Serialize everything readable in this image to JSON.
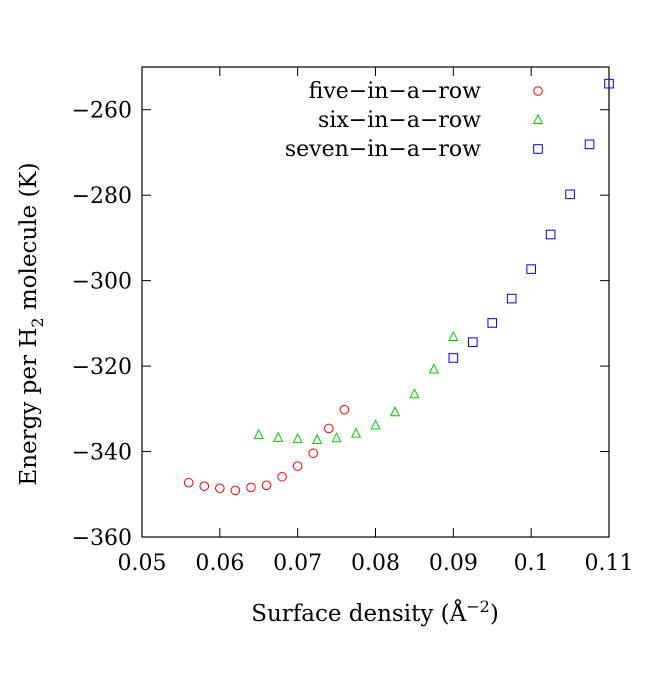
{
  "chart_data": {
    "type": "scatter",
    "xlabel": "Surface density (Å⁻²)",
    "xlabel_parts": {
      "main": "Surface density (Å",
      "sup": "−2",
      "tail": ")"
    },
    "ylabel": "Energy per H₂ molecule  (K)",
    "ylabel_parts": {
      "main": "Energy per H",
      "sub": "2",
      "tail": " molecule  (K)"
    },
    "xlim": [
      0.05,
      0.11
    ],
    "ylim": [
      -360,
      -250
    ],
    "xticks": [
      0.05,
      0.06,
      0.07,
      0.08,
      0.09,
      0.1,
      0.11
    ],
    "xtick_labels": [
      "0.05",
      "0.06",
      "0.07",
      "0.08",
      "0.09",
      "0.1",
      "0.11"
    ],
    "yticks": [
      -360,
      -340,
      -320,
      -300,
      -280,
      -260
    ],
    "ytick_labels": [
      "−360",
      "−340",
      "−320",
      "−300",
      "−280",
      "−260"
    ],
    "grid": false,
    "legend_position": "top-right",
    "series": [
      {
        "name": "five−in−a−row",
        "marker": "circle",
        "color": "#ff0000",
        "points": [
          [
            0.056,
            -347.3
          ],
          [
            0.058,
            -348.1
          ],
          [
            0.06,
            -348.6
          ],
          [
            0.062,
            -349.1
          ],
          [
            0.064,
            -348.4
          ],
          [
            0.066,
            -347.9
          ],
          [
            0.068,
            -345.9
          ],
          [
            0.07,
            -343.4
          ],
          [
            0.072,
            -340.4
          ],
          [
            0.074,
            -334.6
          ],
          [
            0.076,
            -330.2
          ]
        ]
      },
      {
        "name": "six−in−a−row",
        "marker": "triangle",
        "color": "#00cc00",
        "points": [
          [
            0.065,
            -336.1
          ],
          [
            0.0675,
            -336.8
          ],
          [
            0.07,
            -337.1
          ],
          [
            0.0725,
            -337.3
          ],
          [
            0.075,
            -336.9
          ],
          [
            0.0775,
            -335.8
          ],
          [
            0.08,
            -333.9
          ],
          [
            0.0825,
            -330.8
          ],
          [
            0.085,
            -326.6
          ],
          [
            0.0875,
            -320.8
          ],
          [
            0.09,
            -313.2
          ]
        ]
      },
      {
        "name": "seven−in−a−row",
        "marker": "square",
        "color": "#0000ff",
        "points": [
          [
            0.09,
            -318.1
          ],
          [
            0.0925,
            -314.4
          ],
          [
            0.095,
            -309.9
          ],
          [
            0.0975,
            -304.2
          ],
          [
            0.1,
            -297.3
          ],
          [
            0.1025,
            -289.2
          ],
          [
            0.105,
            -279.8
          ],
          [
            0.1075,
            -268.1
          ],
          [
            0.11,
            -253.9
          ]
        ]
      }
    ]
  }
}
